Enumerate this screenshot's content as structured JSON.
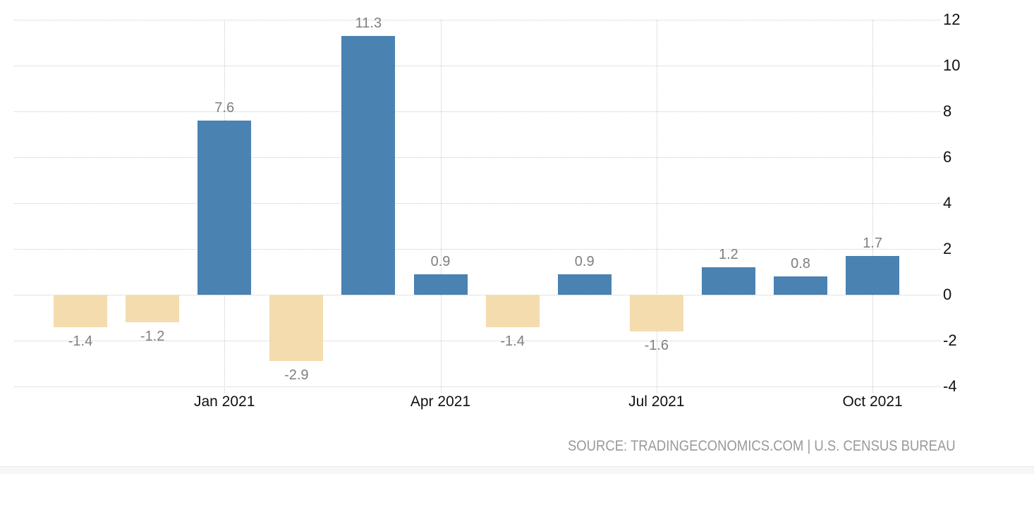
{
  "chart_data": {
    "type": "bar",
    "title": "",
    "xlabel": "",
    "ylabel": "",
    "values": [
      -1.4,
      -1.2,
      7.6,
      -2.9,
      11.3,
      0.9,
      -1.4,
      0.9,
      -1.6,
      1.2,
      0.8,
      1.7
    ],
    "bar_value_labels": [
      "-1.4",
      "-1.2",
      "7.6",
      "-2.9",
      "11.3",
      "0.9",
      "-1.4",
      "0.9",
      "-1.6",
      "1.2",
      "0.8",
      "1.7"
    ],
    "x_tick_labels": [
      "Jan 2021",
      "Apr 2021",
      "Jul 2021",
      "Oct 2021"
    ],
    "x_tick_bar_indices": [
      2,
      5,
      8,
      11
    ],
    "y_tick_labels": [
      "12",
      "10",
      "8",
      "6",
      "4",
      "2",
      "0",
      "-2",
      "-4"
    ],
    "y_tick_values": [
      12,
      10,
      8,
      6,
      4,
      2,
      0,
      -2,
      -4
    ],
    "ylim": [
      -4,
      12
    ],
    "grid": "dotted",
    "legend_position": "none",
    "colors": {
      "positive_bar": "#4a82b2",
      "negative_bar": "#f4dcae",
      "grid_line": "#c9c9c9",
      "value_label": "#7f7f7f",
      "axis_label": "#111111",
      "source_text": "#999999"
    },
    "source_text": "SOURCE: TRADINGECONOMICS.COM | U.S. CENSUS BUREAU"
  }
}
